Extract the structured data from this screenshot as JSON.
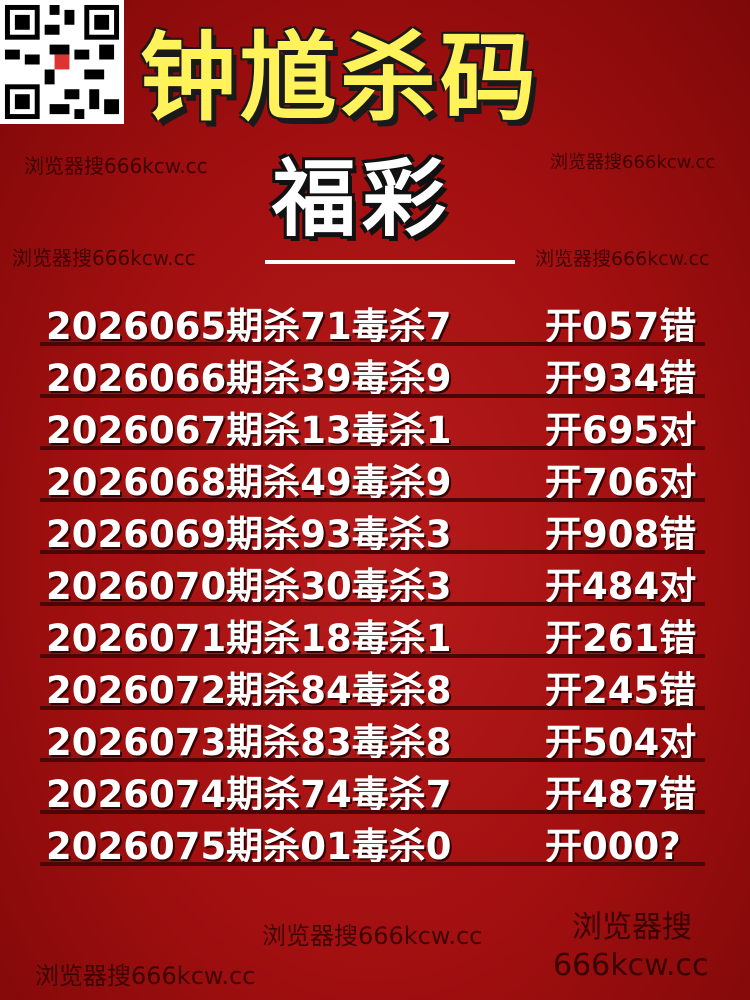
{
  "header": {
    "title": "钟馗杀码",
    "subtitle": "福彩"
  },
  "watermarks": [
    "浏览器搜666kcw.cc",
    "浏览器搜666kcw.cc",
    "浏览器搜666kcw.cc",
    "浏览器搜666kcw.cc",
    "浏览器搜666kcw.cc",
    "浏览器搜666kcw.cc"
  ],
  "watermark_big": [
    "浏览器搜",
    "666kcw.cc"
  ],
  "rows": [
    [
      "2026065期杀71毒杀7",
      "开057错"
    ],
    [
      "2026066期杀39毒杀9",
      "开934错"
    ],
    [
      "2026067期杀13毒杀1",
      "开695对"
    ],
    [
      "2026068期杀49毒杀9",
      "开706对"
    ],
    [
      "2026069期杀93毒杀3",
      "开908错"
    ],
    [
      "2026070期杀30毒杀3",
      "开484对"
    ],
    [
      "2026071期杀18毒杀1",
      "开261错"
    ],
    [
      "2026072期杀84毒杀8",
      "开245错"
    ],
    [
      "2026073期杀83毒杀8",
      "开504对"
    ],
    [
      "2026074期杀74毒杀7",
      "开487错"
    ],
    [
      "2026075期杀01毒杀0",
      "开000?"
    ]
  ]
}
